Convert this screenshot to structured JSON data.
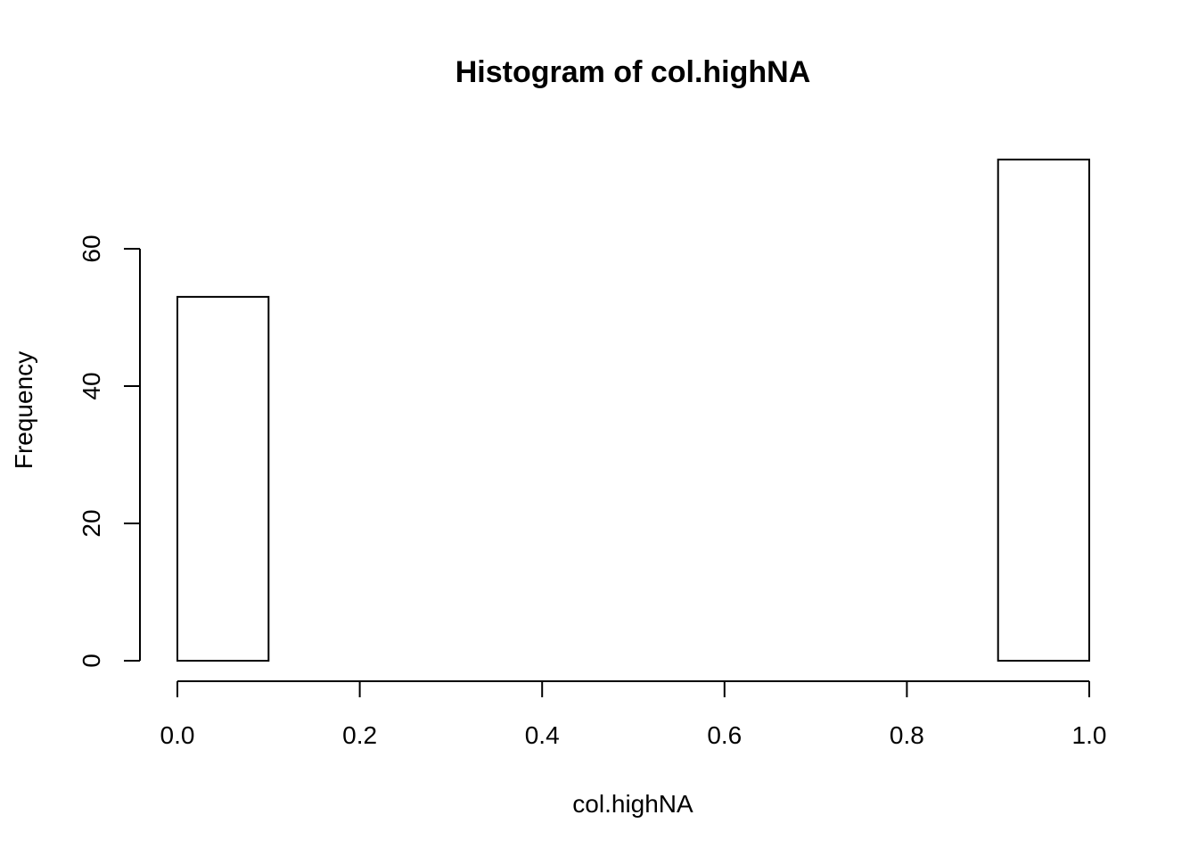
{
  "chart_data": {
    "type": "bar",
    "title": "Histogram of col.highNA",
    "xlabel": "col.highNA",
    "ylabel": "Frequency",
    "xlim": [
      0,
      1
    ],
    "ylim": [
      0,
      73
    ],
    "x_ticks": [
      0.0,
      0.2,
      0.4,
      0.6,
      0.8,
      1.0
    ],
    "x_tick_labels": [
      "0.0",
      "0.2",
      "0.4",
      "0.6",
      "0.8",
      "1.0"
    ],
    "y_ticks": [
      0,
      20,
      40,
      60
    ],
    "y_tick_labels": [
      "0",
      "20",
      "40",
      "60"
    ],
    "bins": [
      {
        "from": 0.0,
        "to": 0.1,
        "count": 53
      },
      {
        "from": 0.1,
        "to": 0.2,
        "count": 0
      },
      {
        "from": 0.2,
        "to": 0.3,
        "count": 0
      },
      {
        "from": 0.3,
        "to": 0.4,
        "count": 0
      },
      {
        "from": 0.4,
        "to": 0.5,
        "count": 0
      },
      {
        "from": 0.5,
        "to": 0.6,
        "count": 0
      },
      {
        "from": 0.6,
        "to": 0.7,
        "count": 0
      },
      {
        "from": 0.7,
        "to": 0.8,
        "count": 0
      },
      {
        "from": 0.8,
        "to": 0.9,
        "count": 0
      },
      {
        "from": 0.9,
        "to": 1.0,
        "count": 73
      }
    ],
    "bar_fill": "#ffffff",
    "bar_stroke": "#000000",
    "grid": false,
    "legend": "none"
  }
}
